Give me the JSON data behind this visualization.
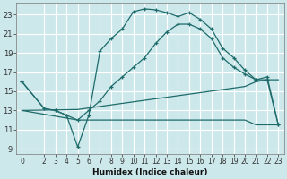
{
  "xlabel": "Humidex (Indice chaleur)",
  "background_color": "#cde8eb",
  "grid_color": "#ffffff",
  "line_color": "#1e6b6b",
  "xlim": [
    -0.5,
    23.5
  ],
  "ylim": [
    8.5,
    24.2
  ],
  "xtick_labels": [
    "0",
    "2",
    "3",
    "4",
    "5",
    "6",
    "7",
    "8",
    "9",
    "10",
    "11",
    "12",
    "13",
    "14",
    "15",
    "16",
    "17",
    "18",
    "19",
    "20",
    "21",
    "22",
    "23"
  ],
  "xtick_vals": [
    0,
    2,
    3,
    4,
    5,
    6,
    7,
    8,
    9,
    10,
    11,
    12,
    13,
    14,
    15,
    16,
    17,
    18,
    19,
    20,
    21,
    22,
    23
  ],
  "ytick_vals": [
    9,
    11,
    13,
    15,
    17,
    19,
    21,
    23
  ],
  "series": [
    {
      "x": [
        0,
        2,
        3,
        4,
        5,
        6,
        7,
        8,
        9,
        10,
        11,
        12,
        13,
        14,
        15,
        16,
        17,
        18,
        19,
        20,
        21,
        22,
        23
      ],
      "y": [
        16,
        13.2,
        13.0,
        12.5,
        9.2,
        12.5,
        19.2,
        20.5,
        21.5,
        23.3,
        23.6,
        23.5,
        23.2,
        22.8,
        23.2,
        22.5,
        21.5,
        19.5,
        18.5,
        17.2,
        16.2,
        16.5,
        11.5
      ],
      "marker": true
    },
    {
      "x": [
        0,
        2,
        3,
        4,
        5,
        6,
        7,
        8,
        9,
        10,
        11,
        12,
        13,
        14,
        15,
        16,
        17,
        18,
        19,
        20,
        21,
        22,
        23
      ],
      "y": [
        16.0,
        13.2,
        13.0,
        12.5,
        12.0,
        13.0,
        14.0,
        15.5,
        16.5,
        17.5,
        18.5,
        20.0,
        21.2,
        22.0,
        22.0,
        21.5,
        20.5,
        18.5,
        17.5,
        16.8,
        16.2,
        16.2,
        11.5
      ],
      "marker": true
    },
    {
      "x": [
        0,
        5,
        20,
        21,
        22,
        23
      ],
      "y": [
        13.0,
        13.1,
        15.5,
        16.0,
        16.2,
        16.2
      ],
      "marker": false
    },
    {
      "x": [
        0,
        5,
        6,
        7,
        20,
        21,
        22,
        23
      ],
      "y": [
        13.0,
        12.0,
        12.0,
        12.0,
        12.0,
        11.5,
        11.5,
        11.5
      ],
      "marker": false
    }
  ]
}
